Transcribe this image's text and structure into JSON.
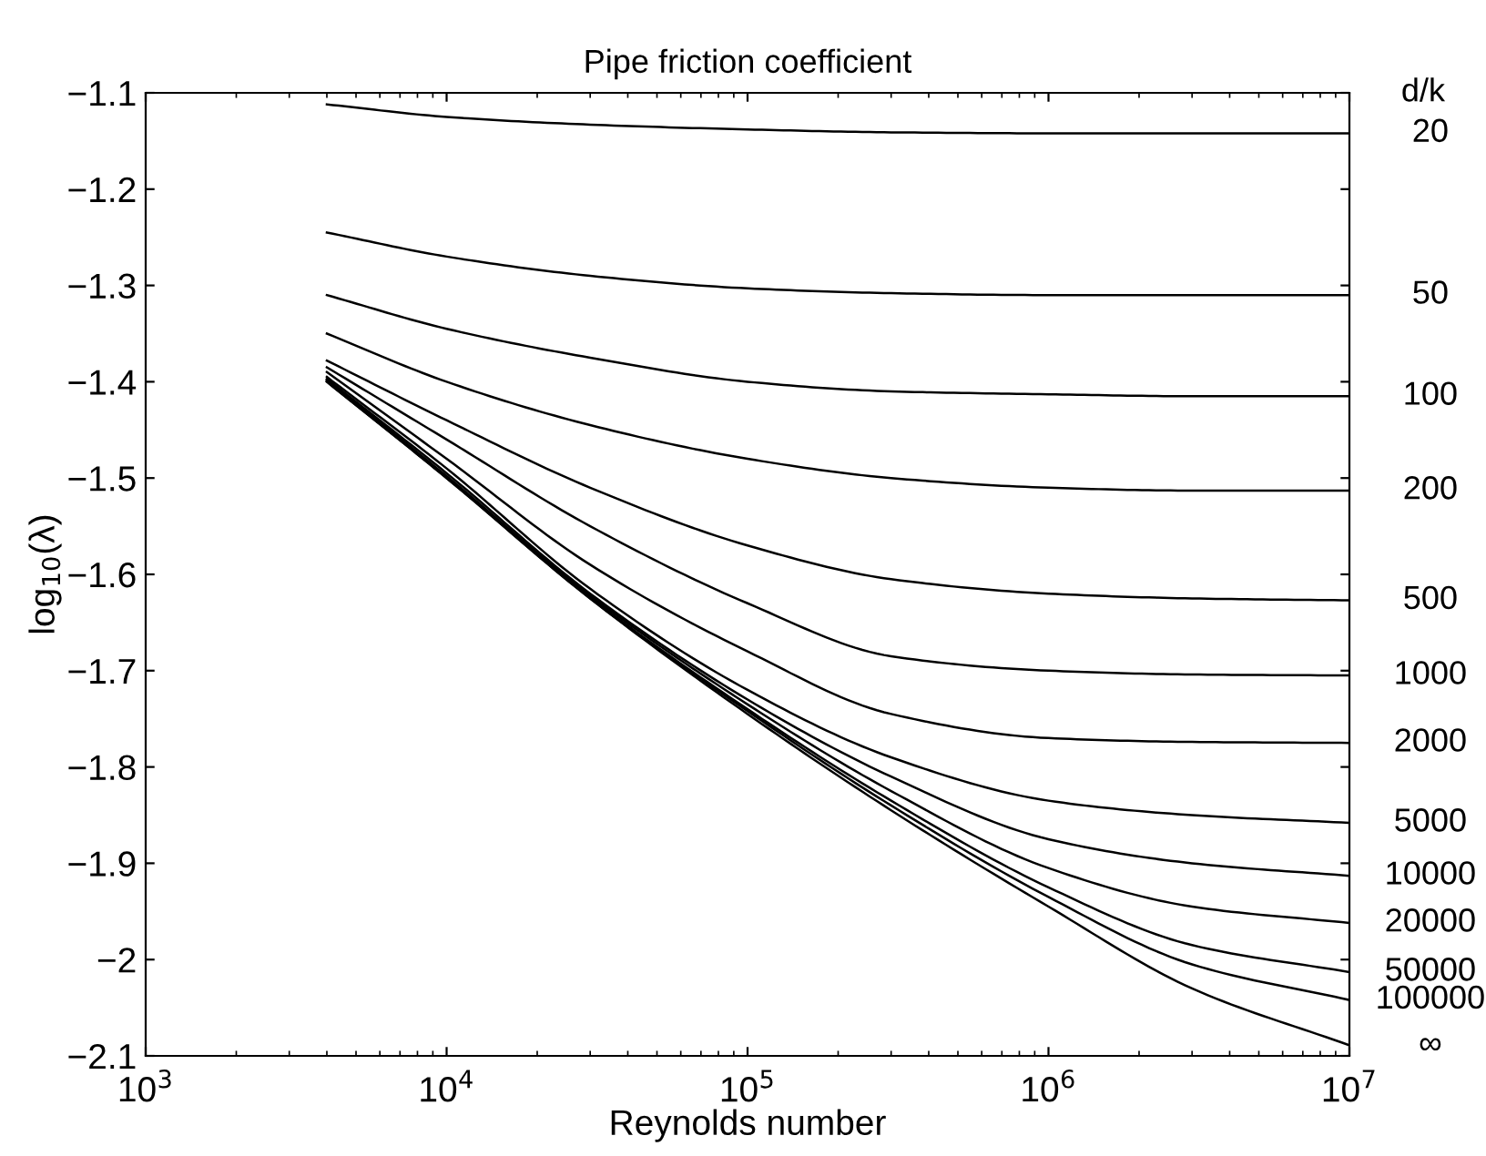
{
  "chart_data": {
    "type": "line",
    "title": "Pipe friction coefficient",
    "xlabel": "Reynolds number",
    "ylabel": "log$_{10}$(λ)",
    "legend_title": "d/k",
    "log": "x",
    "grid": false,
    "legend": "right",
    "marker": "none",
    "line_style": "solid",
    "xlim": [
      1000,
      10000000
    ],
    "xticks": [
      {
        "value": 1000,
        "label": "10$^{3}$"
      },
      {
        "value": 10000,
        "label": "10$^{4}$"
      },
      {
        "value": 100000,
        "label": "10$^{5}$"
      },
      {
        "value": 1000000,
        "label": "10$^{6}$"
      },
      {
        "value": 10000000,
        "label": "10$^{7}$"
      }
    ],
    "ylim": [
      -2.1,
      -1.1
    ],
    "yticks": [
      -2.1,
      -2,
      -1.9,
      -1.8,
      -1.7,
      -1.6,
      -1.5,
      -1.4,
      -1.3,
      -1.2,
      -1.1
    ],
    "x": [
      4000,
      10000,
      30000,
      100000,
      300000,
      1000000,
      3000000,
      10000000
    ],
    "series": [
      {
        "name": "20",
        "color": "#000000",
        "values": [
          -1.112,
          -1.125,
          -1.133,
          -1.138,
          -1.141,
          -1.142,
          -1.142,
          -1.142
        ]
      },
      {
        "name": "50",
        "color": "#000000",
        "values": [
          -1.245,
          -1.27,
          -1.29,
          -1.303,
          -1.308,
          -1.31,
          -1.31,
          -1.31
        ]
      },
      {
        "name": "100",
        "color": "#000000",
        "values": [
          -1.31,
          -1.345,
          -1.375,
          -1.4,
          -1.41,
          -1.413,
          -1.415,
          -1.415
        ]
      },
      {
        "name": "200",
        "color": "#000000",
        "values": [
          -1.35,
          -1.4,
          -1.445,
          -1.48,
          -1.5,
          -1.51,
          -1.513,
          -1.513
        ]
      },
      {
        "name": "500",
        "color": "#000000",
        "values": [
          -1.378,
          -1.44,
          -1.51,
          -1.57,
          -1.605,
          -1.62,
          -1.625,
          -1.627
        ]
      },
      {
        "name": "1000",
        "color": "#000000",
        "values": [
          -1.385,
          -1.46,
          -1.55,
          -1.63,
          -1.685,
          -1.7,
          -1.704,
          -1.705
        ]
      },
      {
        "name": "2000",
        "color": "#000000",
        "values": [
          -1.39,
          -1.48,
          -1.59,
          -1.68,
          -1.745,
          -1.77,
          -1.774,
          -1.775
        ]
      },
      {
        "name": "5000",
        "color": "#000000",
        "values": [
          -1.395,
          -1.49,
          -1.615,
          -1.72,
          -1.79,
          -1.835,
          -1.85,
          -1.858
        ]
      },
      {
        "name": "10000",
        "color": "#000000",
        "values": [
          -1.397,
          -1.495,
          -1.62,
          -1.73,
          -1.81,
          -1.875,
          -1.9,
          -1.913
        ]
      },
      {
        "name": "20000",
        "color": "#000000",
        "values": [
          -1.398,
          -1.498,
          -1.622,
          -1.735,
          -1.825,
          -1.905,
          -1.945,
          -1.962
        ]
      },
      {
        "name": "50000",
        "color": "#000000",
        "values": [
          -1.399,
          -1.499,
          -1.624,
          -1.74,
          -1.835,
          -1.925,
          -1.985,
          -2.013
        ]
      },
      {
        "name": "100000",
        "color": "#000000",
        "values": [
          -1.4,
          -1.5,
          -1.625,
          -1.742,
          -1.84,
          -1.935,
          -2.005,
          -2.042
        ]
      },
      {
        "name": "∞",
        "color": "#000000",
        "values": [
          -1.4,
          -1.5,
          -1.625,
          -1.745,
          -1.845,
          -1.945,
          -2.03,
          -2.089
        ]
      }
    ]
  }
}
